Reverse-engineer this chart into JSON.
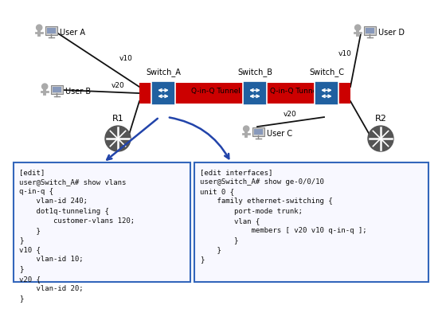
{
  "background_color": "#ffffff",
  "switch_a_label": "Switch_A",
  "switch_b_label": "Switch_B",
  "switch_c_label": "Switch_C",
  "tunnel_label1": "Q-in-Q Tunnel",
  "tunnel_label2": "Q-in-Q Tunnel",
  "user_a_label": "User A",
  "user_b_label": "User B",
  "user_c_label": "User C",
  "user_d_label": "User D",
  "r1_label": "R1",
  "r2_label": "R2",
  "v10_label": "v10",
  "v20_label": "v20",
  "box1_text": "[edit]\nuser@Switch_A# show vlans\nq-in-q {\n    vlan-id 240;\n    dot1q-tunneling {\n        customer-vlans 120;\n    }\n}\nv10 {\n    vlan-id 10;\n}\nv20 {\n    vlan-id 20;\n}",
  "box2_text": "[edit interfaces]\nuser@Switch_A# show ge-0/0/10\nunit 0 {\n    family ethernet-switching {\n        port-mode trunk;\n        vlan {\n            members [ v20 v10 q-in-q ];\n        }\n    }\n}",
  "tunnel_color": "#cc0000",
  "switch_color": "#2060a0",
  "box_border_color": "#3366bb",
  "box_fill_color": "#f8f8ff",
  "arrow_color": "#2244aa",
  "text_color": "#000000",
  "line_color": "#111111",
  "router_color": "#555555",
  "icon_body_color": "#aaaaaa",
  "icon_screen_color": "#8899bb"
}
